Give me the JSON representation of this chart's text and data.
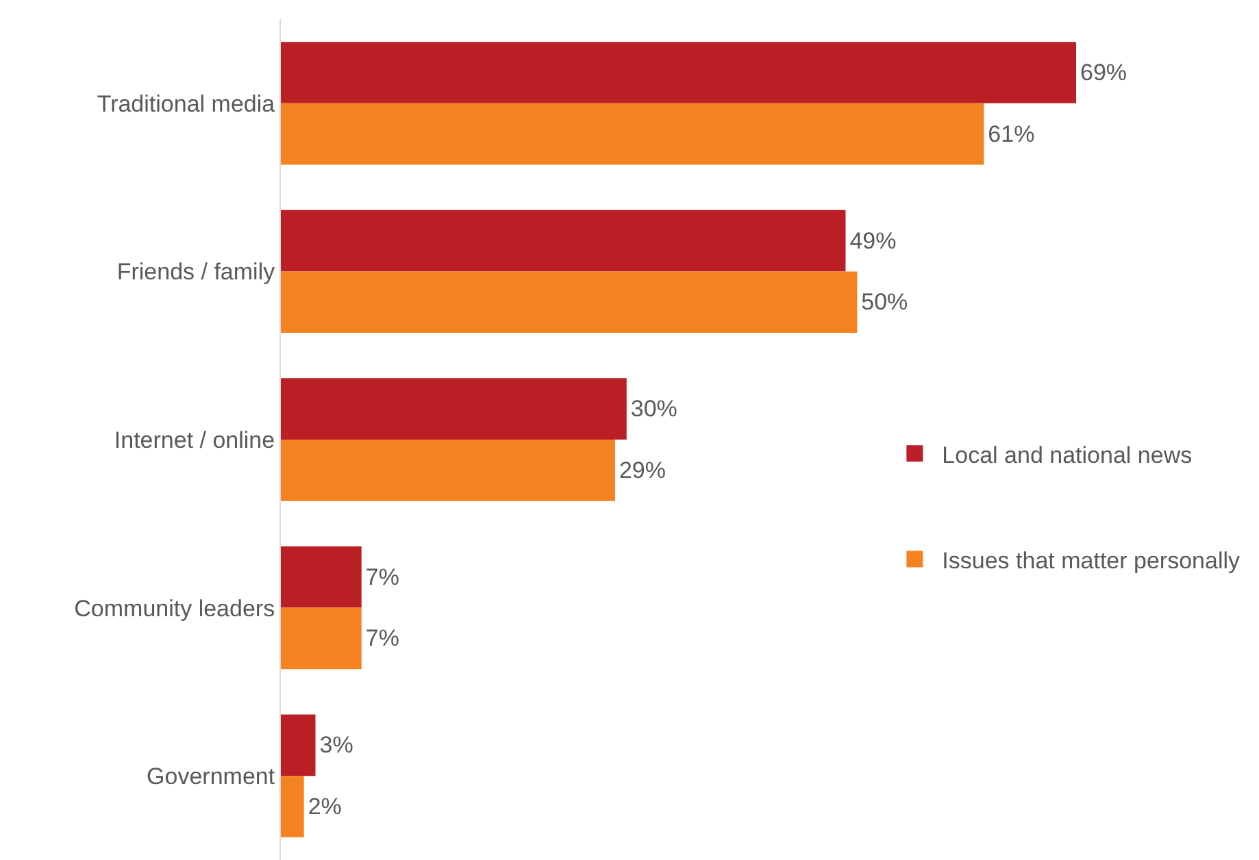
{
  "chart_data": {
    "type": "bar",
    "orientation": "horizontal",
    "categories": [
      "Traditional media",
      "Friends / family",
      "Internet / online",
      "Community leaders",
      "Government"
    ],
    "series": [
      {
        "name": "Local and national news",
        "color": "#b91f24",
        "values": [
          69,
          49,
          30,
          7,
          3
        ],
        "value_labels": [
          "69%",
          "49%",
          "30%",
          "7%",
          "3%"
        ]
      },
      {
        "name": "Issues that matter personally",
        "color": "#f58220",
        "values": [
          61,
          50,
          29,
          7,
          2
        ],
        "value_labels": [
          "61%",
          "50%",
          "29%",
          "7%",
          "2%"
        ]
      }
    ],
    "legend": "right",
    "grid": false,
    "tick_labels": "y"
  }
}
